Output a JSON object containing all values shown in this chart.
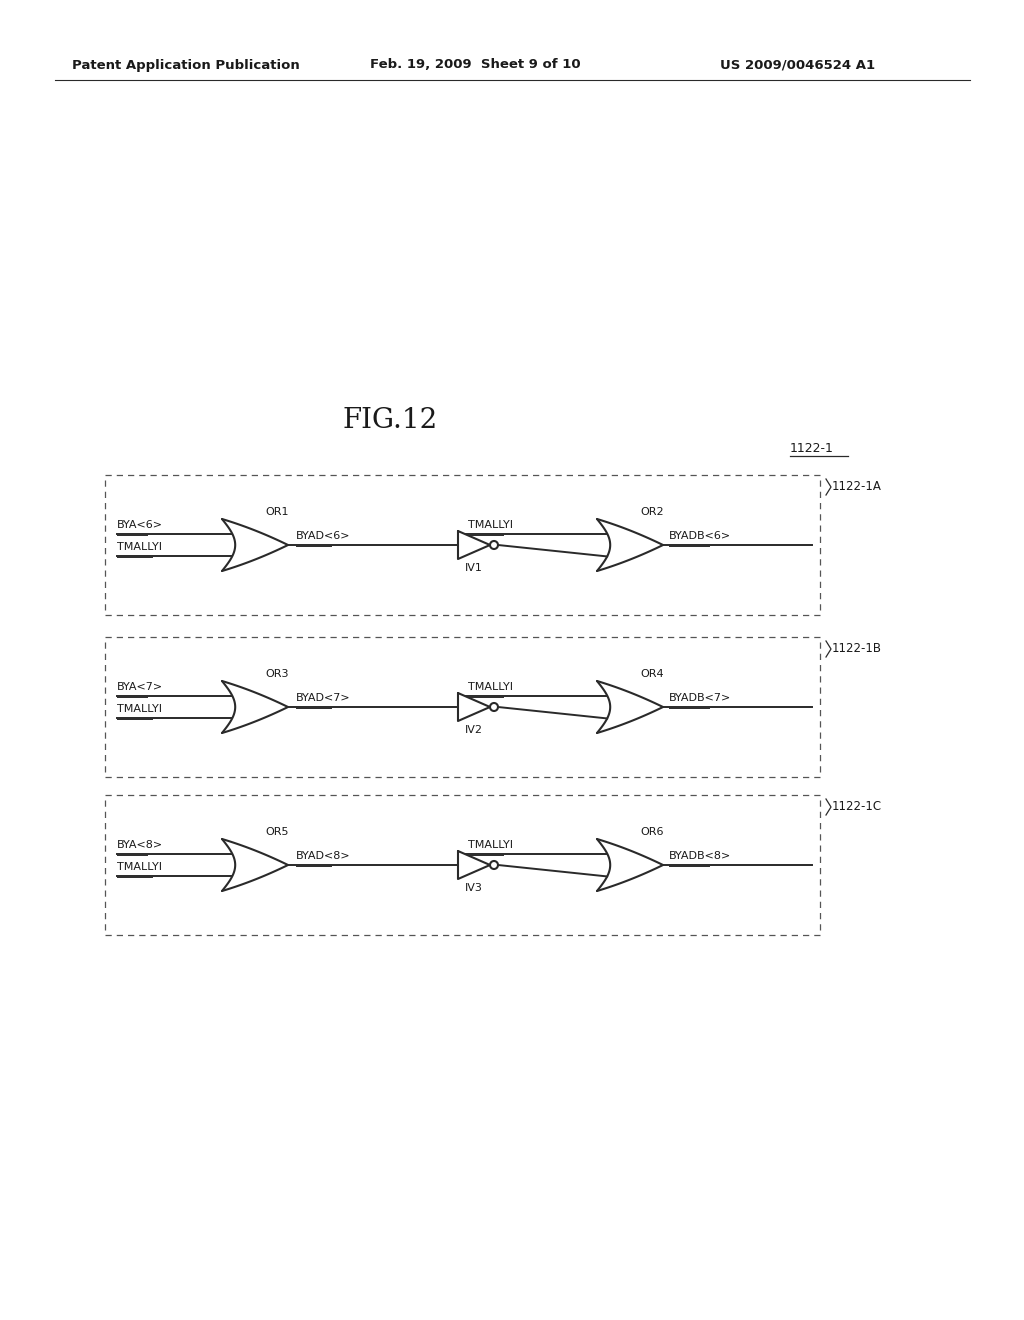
{
  "title": "FIG.12",
  "header_left": "Patent Application Publication",
  "header_mid": "Feb. 19, 2009  Sheet 9 of 10",
  "header_right": "US 2009/0046524 A1",
  "block_label": "1122-1",
  "rows": [
    {
      "box_label": "1122-1A",
      "or1_label": "OR1",
      "or2_label": "OR2",
      "inv_label": "IV1",
      "in1_label": "BYA<6>",
      "in2_label": "TMALLYI",
      "wire_label": "BYAD<6>",
      "tmallyi_label": "TMALLYI",
      "out_label": "BYADB<6>"
    },
    {
      "box_label": "1122-1B",
      "or1_label": "OR3",
      "or2_label": "OR4",
      "inv_label": "IV2",
      "in1_label": "BYA<7>",
      "in2_label": "TMALLYI",
      "wire_label": "BYAD<7>",
      "tmallyi_label": "TMALLYI",
      "out_label": "BYADB<7>"
    },
    {
      "box_label": "1122-1C",
      "or1_label": "OR5",
      "or2_label": "OR6",
      "inv_label": "IV3",
      "in1_label": "BYA<8>",
      "in2_label": "TMALLYI",
      "wire_label": "BYAD<8>",
      "tmallyi_label": "TMALLYI",
      "out_label": "BYADB<8>"
    }
  ],
  "bg_color": "#ffffff",
  "line_color": "#2a2a2a",
  "text_color": "#1a1a1a",
  "header_fontsize": 9.5,
  "title_fontsize": 20,
  "label_fontsize": 8
}
